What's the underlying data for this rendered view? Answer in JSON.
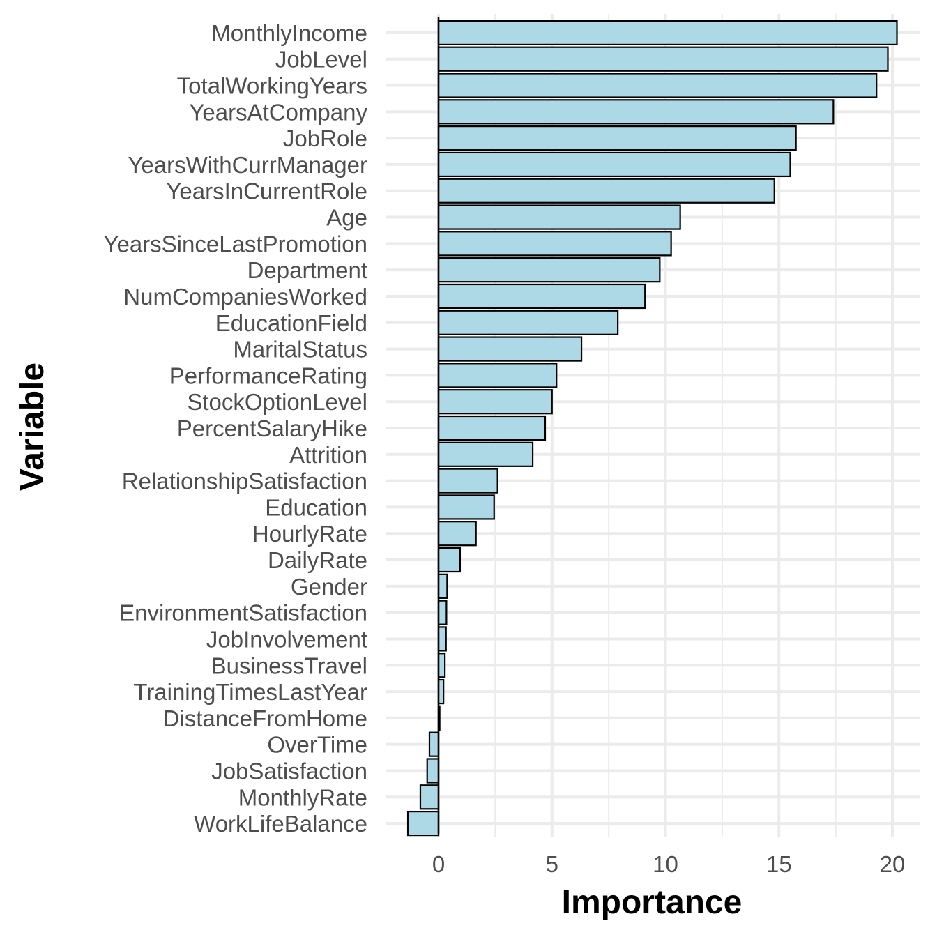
{
  "chart_data": {
    "type": "bar",
    "orientation": "horizontal",
    "title": "",
    "xlabel": "Importance",
    "ylabel": "Variable",
    "xlim": [
      -1.6,
      21
    ],
    "xticks": [
      0,
      5,
      10,
      15,
      20
    ],
    "grid": true,
    "legend": "none",
    "bar_fill": "#add8e6",
    "bar_stroke": "#000000",
    "categories": [
      "MonthlyIncome",
      "JobLevel",
      "TotalWorkingYears",
      "YearsAtCompany",
      "JobRole",
      "YearsWithCurrManager",
      "YearsInCurrentRole",
      "Age",
      "YearsSinceLastPromotion",
      "Department",
      "NumCompaniesWorked",
      "EducationField",
      "MaritalStatus",
      "PerformanceRating",
      "StockOptionLevel",
      "PercentSalaryHike",
      "Attrition",
      "RelationshipSatisfaction",
      "Education",
      "HourlyRate",
      "DailyRate",
      "Gender",
      "EnvironmentSatisfaction",
      "JobInvolvement",
      "BusinessTravel",
      "TrainingTimesLastYear",
      "DistanceFromHome",
      "OverTime",
      "JobSatisfaction",
      "MonthlyRate",
      "WorkLifeBalance"
    ],
    "values": [
      20.2,
      19.8,
      19.3,
      17.4,
      15.75,
      15.5,
      14.8,
      10.65,
      10.25,
      9.75,
      9.1,
      7.9,
      6.3,
      5.2,
      5.0,
      4.7,
      4.15,
      2.6,
      2.45,
      1.65,
      0.95,
      0.38,
      0.35,
      0.33,
      0.28,
      0.22,
      0.05,
      -0.4,
      -0.5,
      -0.8,
      -1.35
    ]
  }
}
